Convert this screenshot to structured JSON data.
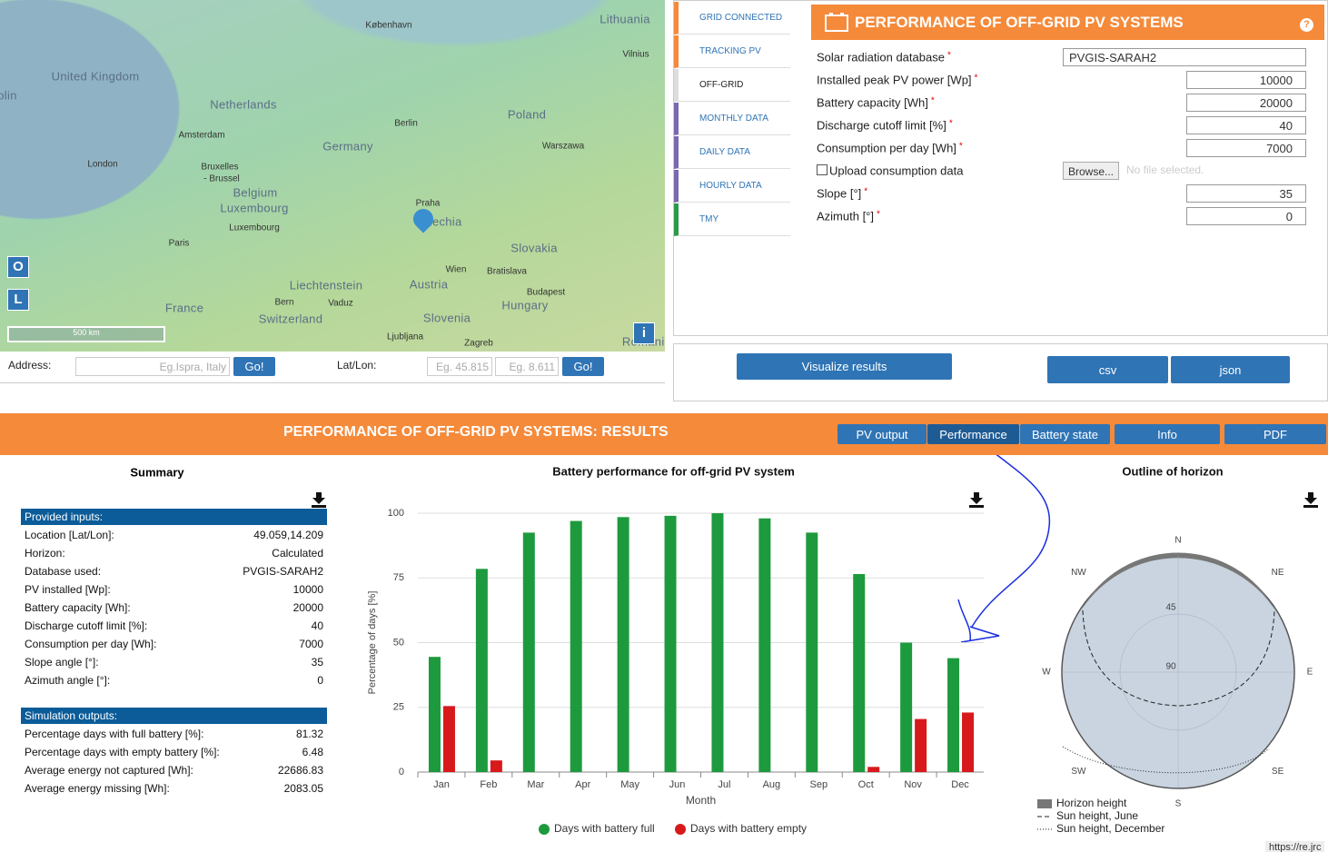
{
  "map": {
    "labels": [
      "Lithuania",
      "København",
      "Vilnius",
      "United Kingdom",
      "olin",
      "Netherlands",
      "Amsterdam",
      "Berlin",
      "Poland",
      "Germany",
      "Warszawa",
      "London",
      "Bruxelles",
      "- Brussel",
      "Belgium",
      "Luxembourg",
      "Luxembourg",
      "Praha",
      "Czechia",
      "Paris",
      "Slovakia",
      "Wien",
      "Bratislava",
      "Liechtenstein",
      "Austria",
      "Bern",
      "Vaduz",
      "Budapest",
      "Hungary",
      "France",
      "Switzerland",
      "Slovenia",
      "Ljubljana",
      "Zagreb",
      "Romania"
    ],
    "zoom_in": "O",
    "zoom_out": "L",
    "scale": "500 km",
    "info": "i"
  },
  "address": {
    "label": "Address:",
    "placeholder": "Eg.Ispra, Italy",
    "go": "Go!",
    "latlon_label": "Lat/Lon:",
    "lat_placeholder": "Eg. 45.815",
    "lon_placeholder": "Eg. 8.611"
  },
  "tabs": [
    "GRID CONNECTED",
    "TRACKING PV",
    "OFF-GRID",
    "MONTHLY DATA",
    "DAILY DATA",
    "HOURLY DATA",
    "TMY"
  ],
  "form": {
    "title": "PERFORMANCE OF OFF-GRID PV SYSTEMS",
    "help": "?",
    "required": "*",
    "fields": [
      {
        "label": "Solar radiation database",
        "value": "PVGIS-SARAH2"
      },
      {
        "label": "Installed peak PV power [Wp]",
        "value": 10000
      },
      {
        "label": "Battery capacity [Wh]",
        "value": 20000
      },
      {
        "label": "Discharge cutoff limit [%]",
        "value": 40
      },
      {
        "label": "Consumption per day [Wh]",
        "value": 7000
      },
      {
        "label": "Slope [°]",
        "value": 35
      },
      {
        "label": "Azimuth [°]",
        "value": 0
      }
    ],
    "upload": {
      "label": "Upload consumption data",
      "button": "Browse...",
      "status": "No file selected."
    }
  },
  "actions": {
    "visualize": "Visualize results",
    "csv": "csv",
    "json": "json"
  },
  "results": {
    "title": "PERFORMANCE OF OFF-GRID PV SYSTEMS: RESULTS",
    "buttons": [
      "PV output",
      "Performance",
      "Battery state",
      "Info",
      "PDF"
    ]
  },
  "summary": {
    "title": "Summary",
    "inputs_heading": "Provided inputs:",
    "inputs": [
      [
        "Location [Lat/Lon]:",
        "49.059,14.209"
      ],
      [
        "Horizon:",
        "Calculated"
      ],
      [
        "Database used:",
        "PVGIS-SARAH2"
      ],
      [
        "PV installed [Wp]:",
        10000
      ],
      [
        "Battery capacity [Wh]:",
        20000
      ],
      [
        "Discharge cutoff limit [%]:",
        40
      ],
      [
        "Consumption per day [Wh]:",
        7000
      ],
      [
        "Slope angle [°]:",
        35
      ],
      [
        "Azimuth angle [°]:",
        0
      ]
    ],
    "outputs_heading": "Simulation outputs:",
    "outputs": [
      [
        "Percentage days with full battery [%]:",
        81.32
      ],
      [
        "Percentage days with empty battery [%]:",
        6.48
      ],
      [
        "Average energy not captured [Wh]:",
        22686.83
      ],
      [
        "Average energy missing [Wh]:",
        2083.05
      ]
    ]
  },
  "chart_data": {
    "type": "bar",
    "title": "Battery performance for off-grid PV system",
    "x_label": "Month",
    "y_label": "Percentage of days [%]",
    "categories": [
      "Jan",
      "Feb",
      "Mar",
      "Apr",
      "May",
      "Jun",
      "Jul",
      "Aug",
      "Sep",
      "Oct",
      "Nov",
      "Dec"
    ],
    "series": [
      {
        "name": "Days with battery full",
        "color": "#1e9a3e",
        "values": [
          44.5,
          78.5,
          92.5,
          97,
          98.5,
          99,
          100,
          98,
          92.5,
          76.5,
          50,
          44
        ]
      },
      {
        "name": "Days with battery empty",
        "color": "#d7191c",
        "values": [
          25.5,
          4.5,
          0,
          0,
          0,
          0,
          0,
          0,
          0,
          2,
          20.5,
          23
        ]
      }
    ],
    "ylim": [
      0,
      100
    ],
    "yticks": [
      0,
      25,
      50,
      75,
      100
    ],
    "grid": true,
    "legend": "bottom"
  },
  "horizon": {
    "title": "Outline of horizon",
    "directions": [
      "N",
      "NE",
      "E",
      "SE",
      "S",
      "SW",
      "W",
      "NW"
    ],
    "rings": [
      45,
      90
    ],
    "legend": [
      "Horizon height",
      "Sun height, June",
      "Sun height, December"
    ]
  },
  "footer_url": "https://re.jrc"
}
